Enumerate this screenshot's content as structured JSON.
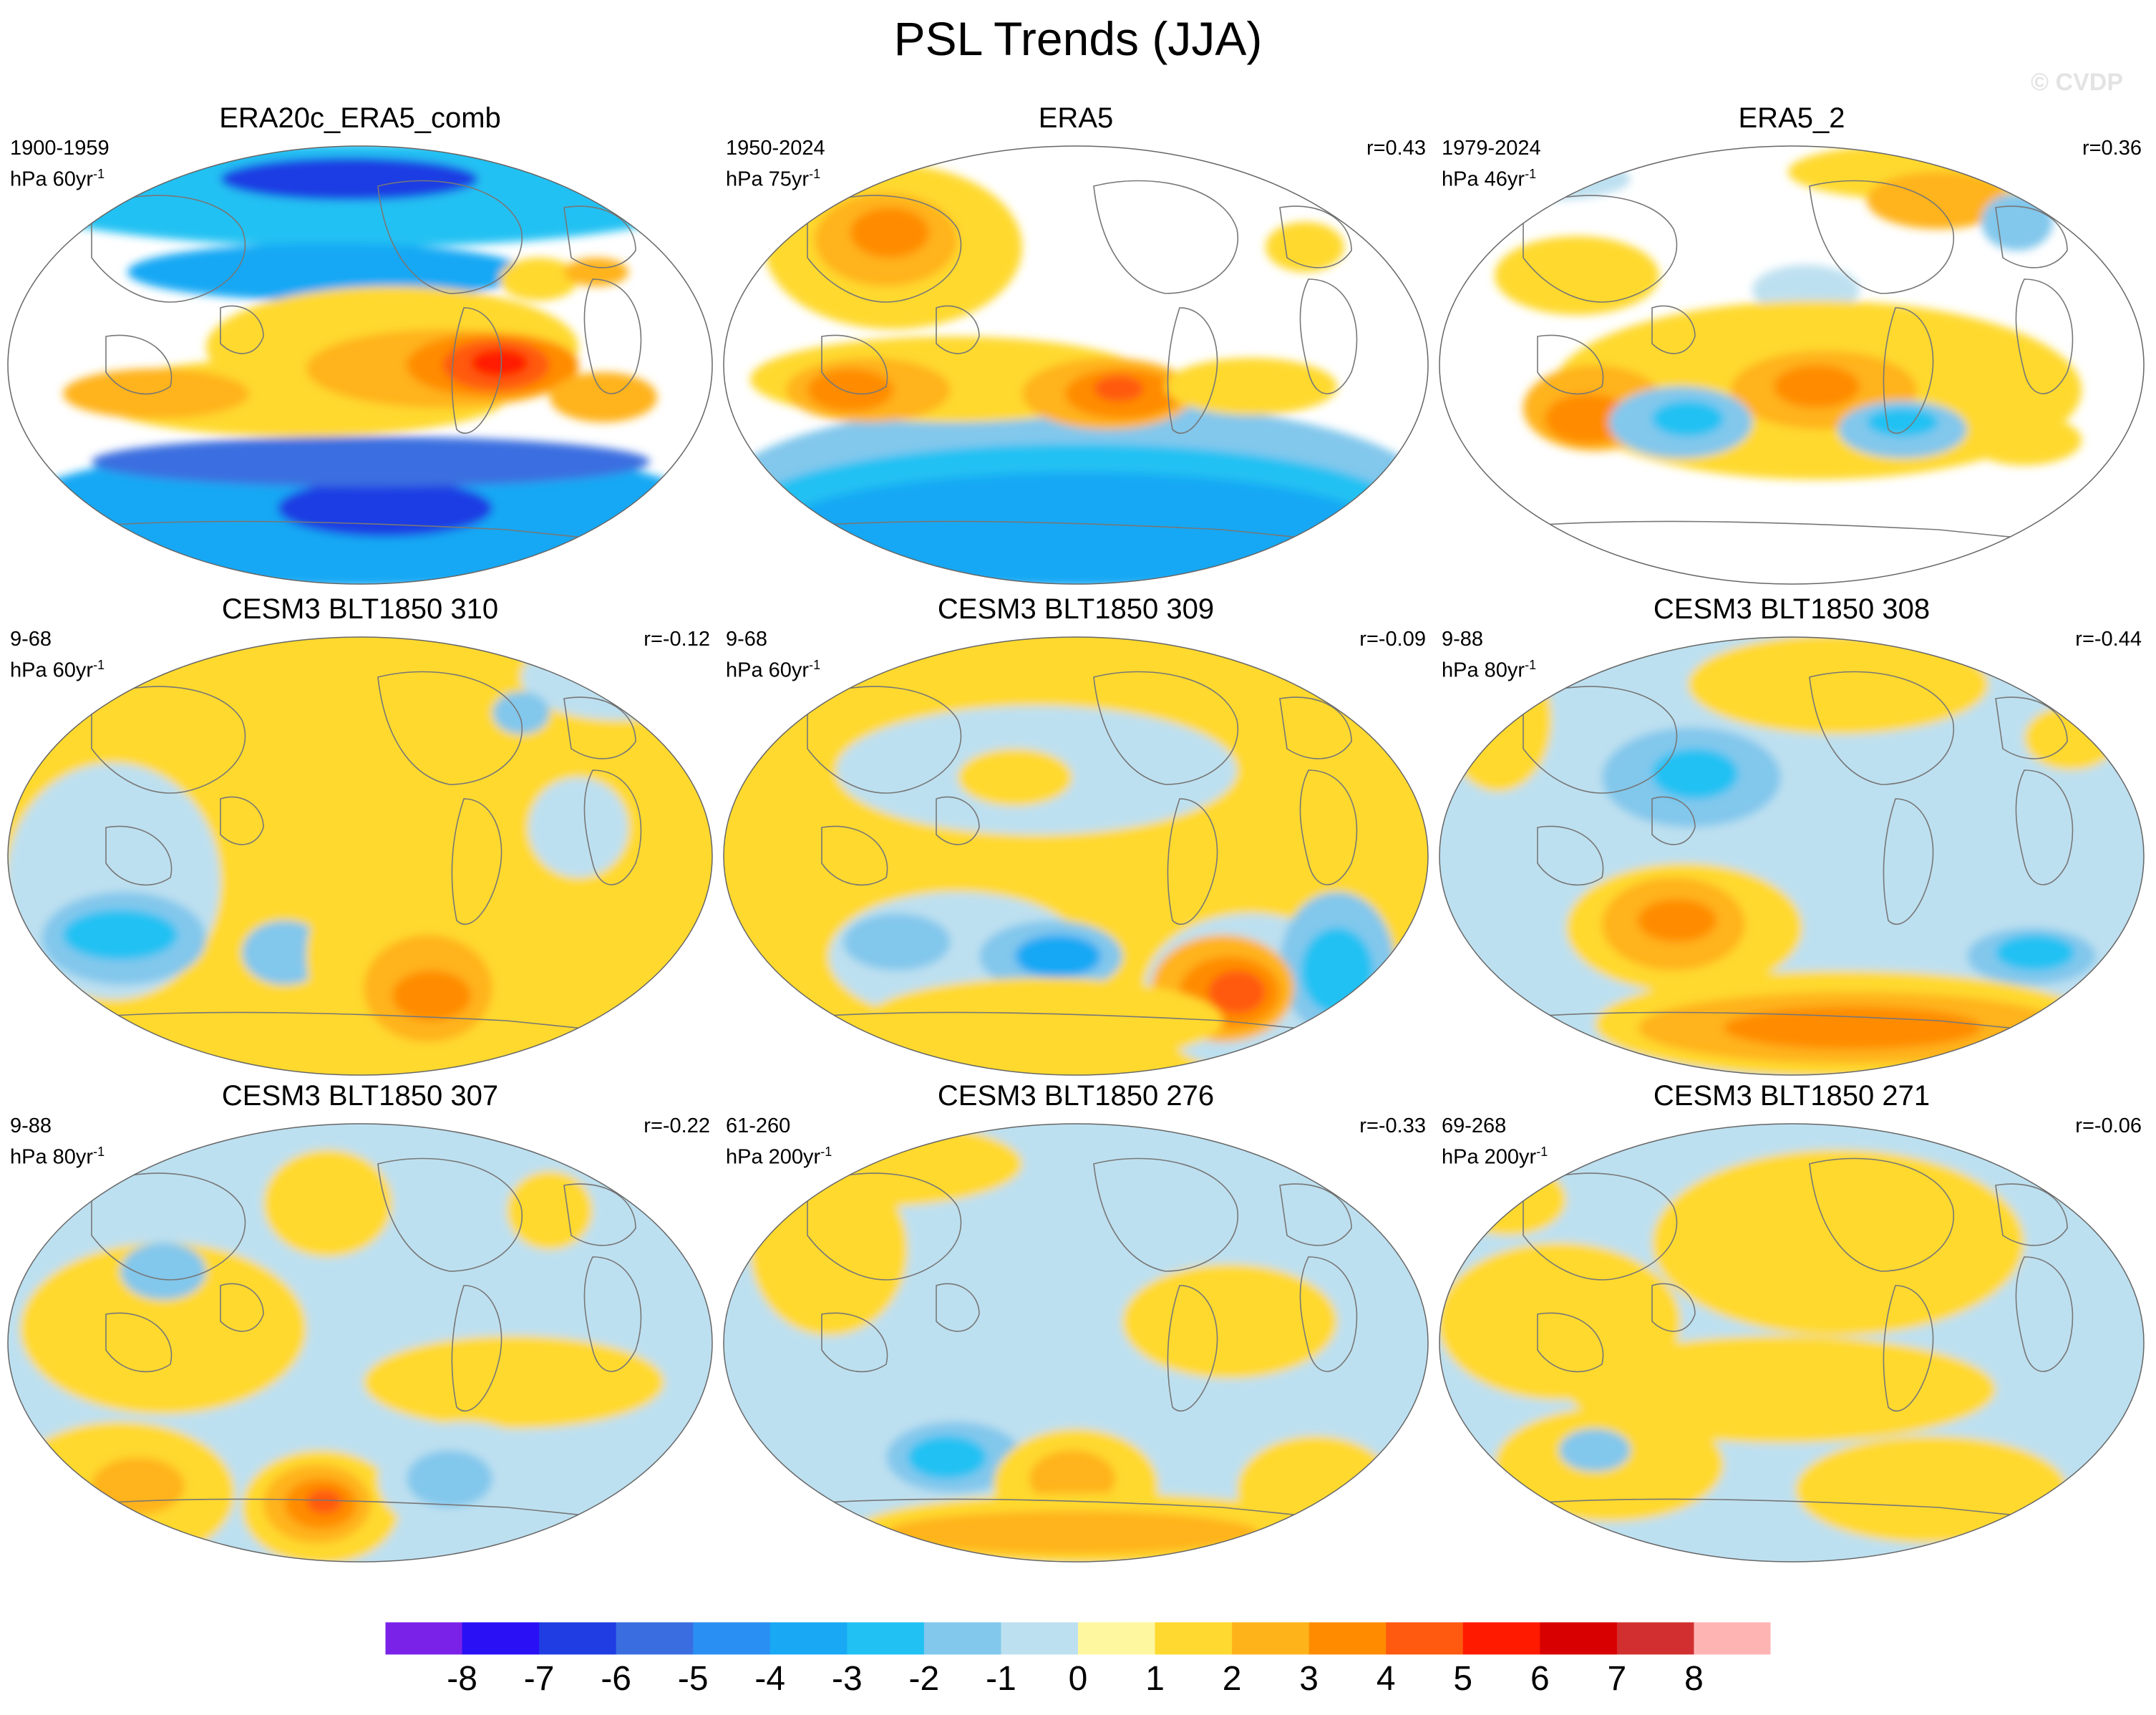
{
  "title": "PSL Trends (JJA)",
  "watermark": "© CVDP",
  "palette": {
    "ocean_neutral": "#bde0f0",
    "land_line": "#777777",
    "colors": [
      "#7b22e8",
      "#2a10f5",
      "#1f3de3",
      "#3a6ee0",
      "#2a8ff2",
      "#18a8f4",
      "#22c1f3",
      "#82c7ec",
      "#bde0f0",
      "#fff7a0",
      "#ffd92f",
      "#ffb31a",
      "#ff8c00",
      "#ff5a10",
      "#ff1a00",
      "#d80000",
      "#d23030",
      "#ffb4b4"
    ]
  },
  "colorbar": {
    "levels": [
      "-8",
      "-7",
      "-6",
      "-5",
      "-4",
      "-3",
      "-2",
      "-1",
      "0",
      "1",
      "2",
      "3",
      "4",
      "5",
      "6",
      "7",
      "8"
    ]
  },
  "panels": [
    {
      "title": "ERA20c_ERA5_comb",
      "period": "1900-1959",
      "units_base": "hPa 60yr",
      "units_exp": "-1",
      "r": "",
      "pattern": "obs1"
    },
    {
      "title": "ERA5",
      "period": "1950-2024",
      "units_base": "hPa 75yr",
      "units_exp": "-1",
      "r": "r=0.43",
      "pattern": "obs2"
    },
    {
      "title": "ERA5_2",
      "period": "1979-2024",
      "units_base": "hPa 46yr",
      "units_exp": "-1",
      "r": "r=0.36",
      "pattern": "obs3"
    },
    {
      "title": "CESM3 BLT1850 310",
      "period": "9-68",
      "units_base": "hPa 60yr",
      "units_exp": "-1",
      "r": "r=-0.12",
      "pattern": "m1"
    },
    {
      "title": "CESM3 BLT1850 309",
      "period": "9-68",
      "units_base": "hPa 60yr",
      "units_exp": "-1",
      "r": "r=-0.09",
      "pattern": "m2"
    },
    {
      "title": "CESM3 BLT1850 308",
      "period": "9-88",
      "units_base": "hPa 80yr",
      "units_exp": "-1",
      "r": "r=-0.44",
      "pattern": "m3"
    },
    {
      "title": "CESM3 BLT1850 307",
      "period": "9-88",
      "units_base": "hPa 80yr",
      "units_exp": "-1",
      "r": "r=-0.22",
      "pattern": "m4"
    },
    {
      "title": "CESM3 BLT1850 276",
      "period": "61-260",
      "units_base": "hPa 200yr",
      "units_exp": "-1",
      "r": "r=-0.33",
      "pattern": "m5"
    },
    {
      "title": "CESM3 BLT1850 271",
      "period": "69-268",
      "units_base": "hPa 200yr",
      "units_exp": "-1",
      "r": "r=-0.06",
      "pattern": "m6"
    }
  ]
}
